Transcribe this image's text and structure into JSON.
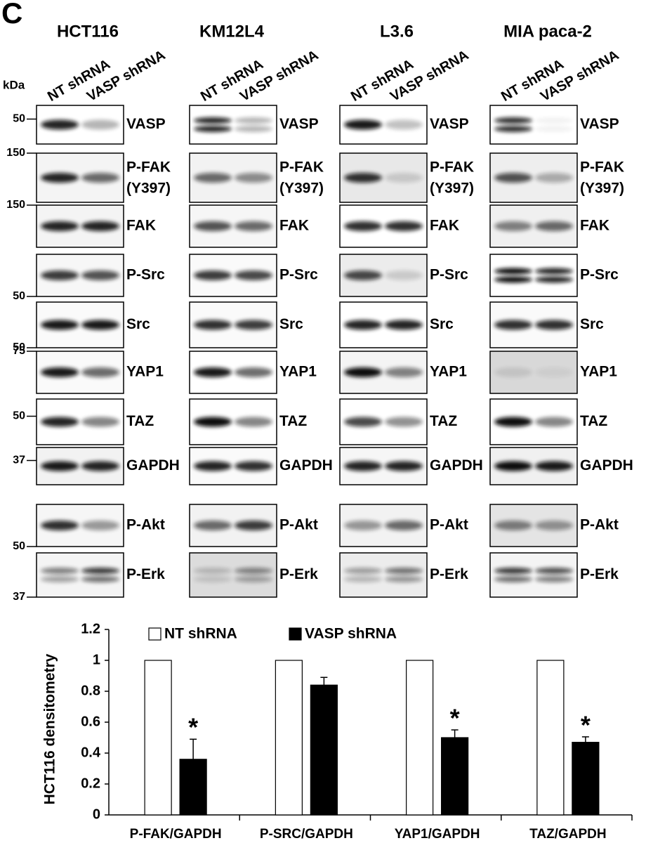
{
  "panel_label": "C",
  "kda_label": "kDa",
  "lane_labels": [
    "NT shRNA",
    "VASP shRNA"
  ],
  "cell_lines": [
    "HCT116",
    "KM12L4",
    "L3.6",
    "MIA paca-2"
  ],
  "blots": [
    {
      "label": "VASP",
      "kda": 50
    },
    {
      "label": "P-FAK",
      "sublabel": "(Y397)",
      "kda": 150
    },
    {
      "label": "FAK",
      "kda": 150
    },
    {
      "label": "P-Src",
      "kda": 50
    },
    {
      "label": "Src",
      "kda": 50
    },
    {
      "label": "YAP1",
      "kda": 75
    },
    {
      "label": "TAZ",
      "kda": 50
    },
    {
      "label": "GAPDH",
      "kda": 37
    },
    {
      "label": "P-Akt",
      "kda": 50
    },
    {
      "label": "P-Erk",
      "kda": 37
    }
  ],
  "chart_data": {
    "type": "bar",
    "y_label": "HCT116 densitometry",
    "categories": [
      "P-FAK/GAPDH",
      "P-SRC/GAPDH",
      "YAP1/GAPDH",
      "TAZ/GAPDH"
    ],
    "series": [
      {
        "name": "NT shRNA",
        "color": "#ffffff",
        "values": [
          1,
          1,
          1,
          1
        ]
      },
      {
        "name": "VASP shRNA",
        "color": "#000000",
        "values": [
          0.36,
          0.84,
          0.5,
          0.47
        ],
        "errors": [
          0.13,
          0.05,
          0.05,
          0.035
        ]
      }
    ],
    "annotations": [
      "*",
      null,
      "*",
      "*"
    ],
    "ylim": [
      0,
      1.2
    ],
    "yticks": [
      0,
      0.2,
      0.4,
      0.6,
      0.8,
      1,
      1.2
    ],
    "legend": "top"
  }
}
